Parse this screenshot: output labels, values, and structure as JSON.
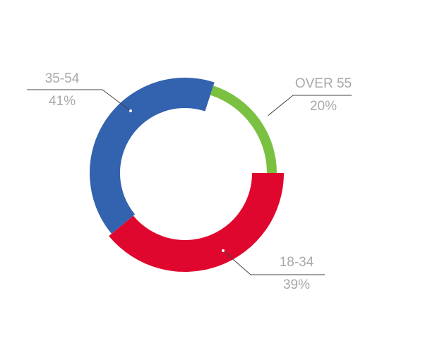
{
  "chart_data": {
    "type": "donut",
    "categories": [
      "18-34",
      "35-54",
      "OVER 55"
    ],
    "values": [
      39,
      41,
      20
    ],
    "value_labels": [
      "39%",
      "41%",
      "20%"
    ],
    "colors": [
      "#e0072e",
      "#3362ae",
      "#7ac142"
    ]
  }
}
